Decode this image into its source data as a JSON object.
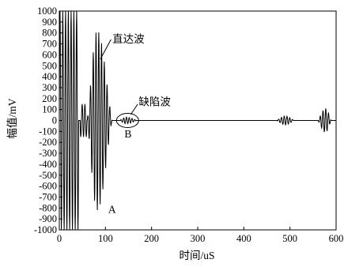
{
  "chart_data": {
    "type": "line",
    "xlabel": "时间/uS",
    "ylabel": "幅值/mV",
    "xlim": [
      0,
      600
    ],
    "ylim": [
      -1000,
      1000
    ],
    "x_ticks": [
      0,
      100,
      200,
      300,
      400,
      500,
      600
    ],
    "y_ticks": [
      1000,
      900,
      800,
      700,
      600,
      500,
      400,
      300,
      200,
      100,
      0,
      -100,
      -200,
      -300,
      -400,
      -500,
      -600,
      -700,
      -800,
      -900,
      -1000
    ],
    "grid": false,
    "series": [
      {
        "segments": [
          {
            "x_start": 0,
            "x_end": 42,
            "amplitude": 1000,
            "note": "clipped"
          },
          {
            "x_start": 45,
            "x_end": 60,
            "amplitude": 150
          },
          {
            "x_start": 60,
            "x_end": 115,
            "peak_amplitude": 820,
            "peak_x": 82,
            "label": "直达波"
          },
          {
            "x_start": 130,
            "x_end": 170,
            "peak_amplitude": 30,
            "peak_x": 145,
            "label": "缺陷波"
          },
          {
            "x_start": 470,
            "x_end": 510,
            "peak_amplitude": 40,
            "peak_x": 490
          },
          {
            "x_start": 560,
            "x_end": 590,
            "peak_amplitude": 110,
            "peak_x": 577
          }
        ]
      }
    ],
    "annotations": [
      {
        "text": "直达波",
        "x": 92,
        "y": 740
      },
      {
        "text": "缺陷波",
        "x": 165,
        "y": 160
      },
      {
        "text": "A",
        "x": 106,
        "y": -810
      },
      {
        "text": "B",
        "x": 148,
        "y": -120
      }
    ]
  }
}
